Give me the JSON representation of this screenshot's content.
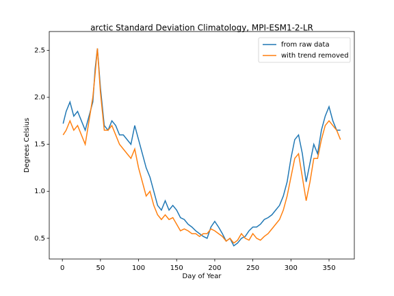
{
  "chart_data": {
    "type": "line",
    "title": "arctic Standard Deviation Climatology, MPI-ESM1-2-LR",
    "xlabel": "Day of Year",
    "ylabel": "Degrees Celsius",
    "x": [
      1,
      5,
      10,
      15,
      20,
      25,
      30,
      35,
      40,
      43,
      46,
      50,
      55,
      60,
      65,
      70,
      75,
      80,
      85,
      90,
      95,
      100,
      105,
      110,
      115,
      120,
      125,
      130,
      135,
      140,
      145,
      150,
      155,
      160,
      165,
      170,
      175,
      180,
      185,
      190,
      195,
      200,
      205,
      210,
      215,
      220,
      225,
      230,
      235,
      240,
      245,
      250,
      255,
      260,
      265,
      270,
      275,
      280,
      285,
      290,
      295,
      300,
      305,
      310,
      315,
      320,
      325,
      330,
      335,
      340,
      345,
      350,
      355,
      360,
      365
    ],
    "series": [
      {
        "name": "from raw data",
        "color": "#1f77b4",
        "values": [
          1.72,
          1.85,
          1.95,
          1.8,
          1.85,
          1.75,
          1.65,
          1.8,
          1.95,
          2.3,
          2.52,
          2.1,
          1.7,
          1.65,
          1.75,
          1.7,
          1.6,
          1.6,
          1.55,
          1.5,
          1.7,
          1.55,
          1.4,
          1.25,
          1.15,
          1.0,
          0.85,
          0.8,
          0.9,
          0.8,
          0.85,
          0.8,
          0.72,
          0.7,
          0.65,
          0.62,
          0.58,
          0.55,
          0.52,
          0.5,
          0.62,
          0.68,
          0.62,
          0.55,
          0.47,
          0.5,
          0.42,
          0.45,
          0.5,
          0.52,
          0.58,
          0.62,
          0.62,
          0.65,
          0.7,
          0.72,
          0.75,
          0.8,
          0.85,
          0.95,
          1.1,
          1.35,
          1.55,
          1.6,
          1.4,
          1.1,
          1.3,
          1.5,
          1.4,
          1.65,
          1.8,
          1.9,
          1.75,
          1.65,
          1.65
        ]
      },
      {
        "name": "with trend removed",
        "color": "#ff7f0e",
        "values": [
          1.6,
          1.65,
          1.75,
          1.65,
          1.7,
          1.6,
          1.5,
          1.75,
          2.0,
          2.25,
          2.52,
          2.05,
          1.65,
          1.65,
          1.7,
          1.6,
          1.5,
          1.45,
          1.4,
          1.35,
          1.45,
          1.25,
          1.1,
          0.95,
          1.0,
          0.85,
          0.75,
          0.7,
          0.75,
          0.7,
          0.72,
          0.65,
          0.58,
          0.6,
          0.58,
          0.55,
          0.55,
          0.52,
          0.55,
          0.55,
          0.6,
          0.58,
          0.55,
          0.52,
          0.47,
          0.5,
          0.45,
          0.48,
          0.55,
          0.5,
          0.48,
          0.55,
          0.5,
          0.48,
          0.52,
          0.55,
          0.6,
          0.65,
          0.7,
          0.8,
          0.95,
          1.15,
          1.35,
          1.4,
          1.15,
          0.9,
          1.1,
          1.35,
          1.35,
          1.55,
          1.7,
          1.75,
          1.7,
          1.65,
          1.55
        ]
      }
    ],
    "xlim": [
      -17.2,
      383.2
    ],
    "ylim": [
      0.28,
      2.7
    ],
    "xticks": [
      0,
      50,
      100,
      150,
      200,
      250,
      300,
      350
    ],
    "yticks": [
      0.5,
      {
        "value": 1,
        "label": "1.0"
      },
      1.5,
      {
        "value": 2,
        "label": "2.0"
      },
      2.5
    ],
    "legend": "upper right"
  }
}
